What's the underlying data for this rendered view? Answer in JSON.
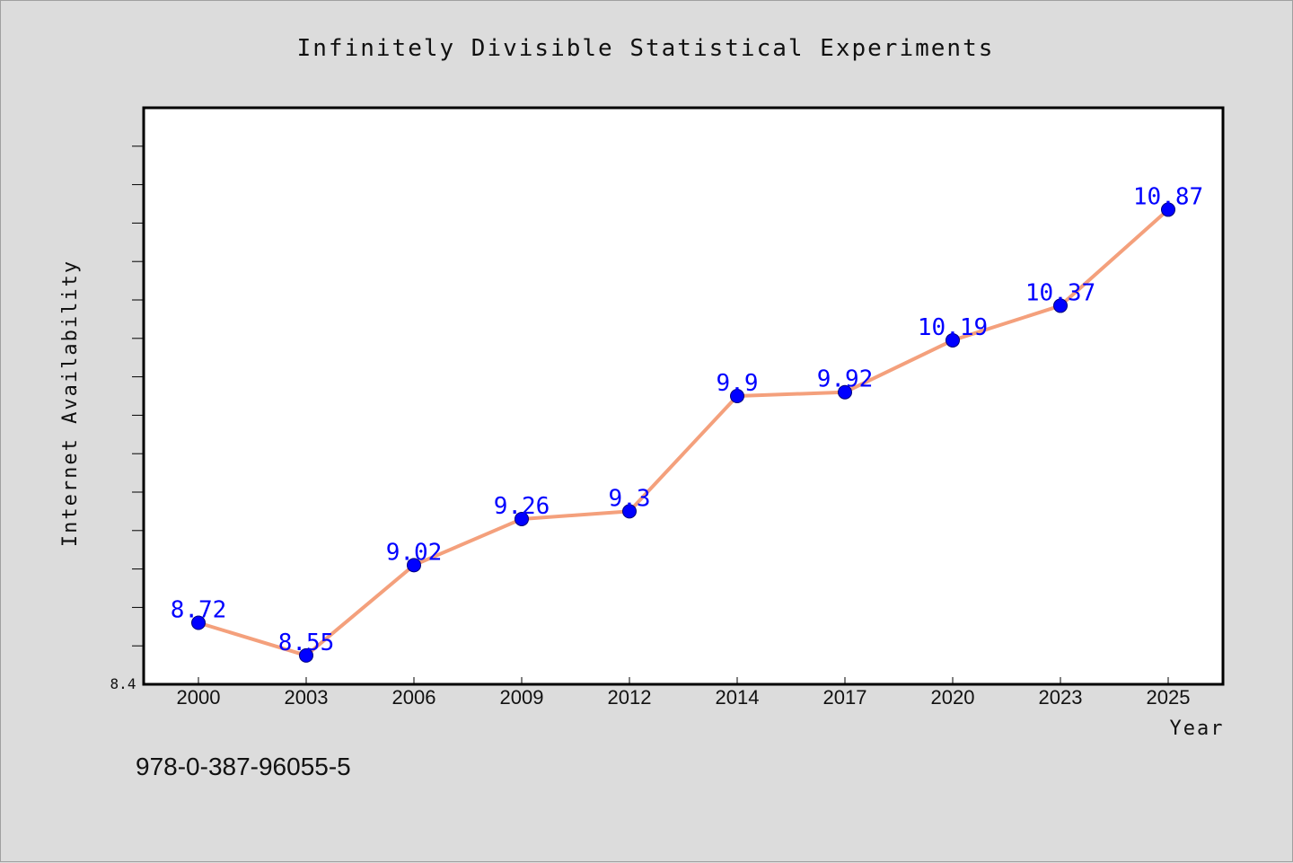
{
  "chart_data": {
    "type": "line",
    "title": "Infinitely Divisible Statistical Experiments",
    "xlabel": "Year",
    "ylabel": "Internet Availability",
    "categories": [
      "2000",
      "2003",
      "2006",
      "2009",
      "2012",
      "2014",
      "2017",
      "2020",
      "2023",
      "2025"
    ],
    "series": [
      {
        "values": [
          8.72,
          8.55,
          9.02,
          9.26,
          9.3,
          9.9,
          9.92,
          10.19,
          10.37,
          10.87
        ],
        "data_labels": [
          "8.72",
          "8.55",
          "9.02",
          "9.26",
          "9.3",
          "9.9",
          "9.92",
          "10.19",
          "10.37",
          "10.87"
        ],
        "line_color": "#f4a07c",
        "marker_color": "#0000ff"
      }
    ],
    "ylim": [
      8.4,
      11.4
    ],
    "y_tick_labels": [
      "8.4"
    ],
    "grid": false,
    "legend": "none"
  },
  "footer": {
    "isbn": "978-0-387-96055-5"
  },
  "colors": {
    "background": "#dcdcdc",
    "plot_background": "#ffffff",
    "line": "#f4a07c",
    "marker": "#0000ff",
    "data_label": "#0000ff"
  }
}
